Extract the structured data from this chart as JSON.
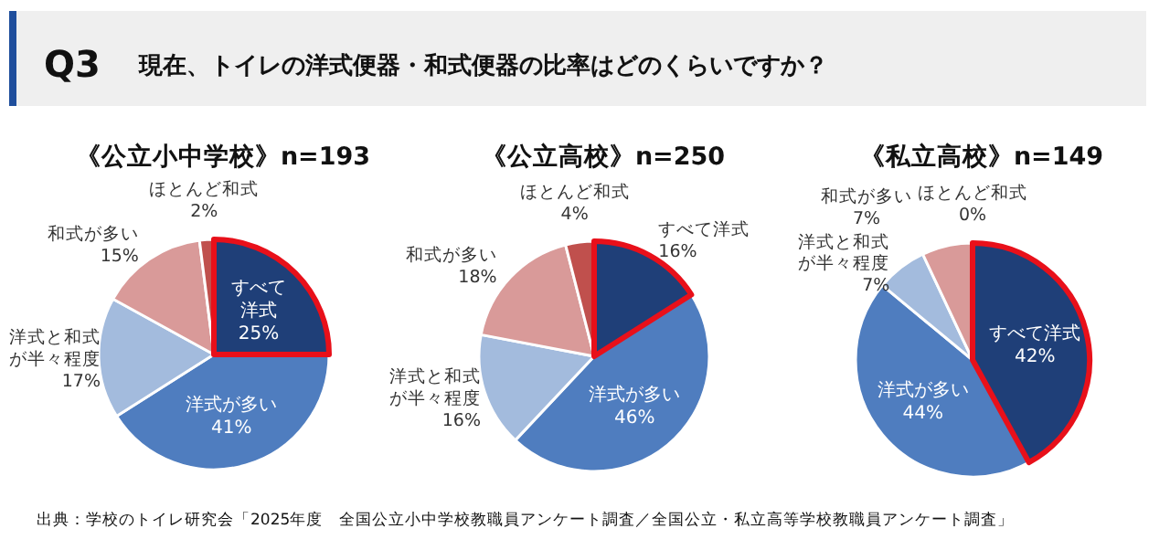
{
  "chart_data": [
    {
      "type": "pie",
      "title": "《公立小中学校》n=193",
      "categories": [
        "すべて洋式",
        "洋式が多い",
        "洋式と和式が半々程度",
        "和式が多い",
        "ほとんど和式"
      ],
      "values": [
        25,
        41,
        17,
        15,
        2
      ],
      "value_labels": [
        "25%",
        "41%",
        "17%",
        "15%",
        "2%"
      ],
      "colors": [
        "#1f3f78",
        "#4f7dbf",
        "#a3bbdd",
        "#d99a99",
        "#c0504d"
      ],
      "annotations": [
        "Q3",
        "現在、トイレの洋式便器・和式便器の比率はどのくらいですか？",
        "出典：学校のトイレ研究会「2025年度　全国公立小中学校教職員アンケート調査／全国公立・私立高等学校教職員アンケート調査」"
      ]
    },
    {
      "type": "pie",
      "title": "《公立高校》n=250",
      "categories": [
        "すべて洋式",
        "洋式が多い",
        "洋式と和式が半々程度",
        "和式が多い",
        "ほとんど和式"
      ],
      "values": [
        16,
        46,
        16,
        18,
        4
      ],
      "value_labels": [
        "16%",
        "46%",
        "16%",
        "18%",
        "4%"
      ],
      "colors": [
        "#1f3f78",
        "#4f7dbf",
        "#a3bbdd",
        "#d99a99",
        "#c0504d"
      ]
    },
    {
      "type": "pie",
      "title": "《私立高校》n=149",
      "categories": [
        "すべて洋式",
        "洋式が多い",
        "洋式と和式が半々程度",
        "和式が多い",
        "ほとんど和式"
      ],
      "values": [
        42,
        44,
        7,
        7,
        0
      ],
      "value_labels": [
        "42%",
        "44%",
        "7%",
        "7%",
        "0%"
      ],
      "colors": [
        "#1f3f78",
        "#4f7dbf",
        "#a3bbdd",
        "#d99a99",
        "#c0504d"
      ]
    }
  ]
}
